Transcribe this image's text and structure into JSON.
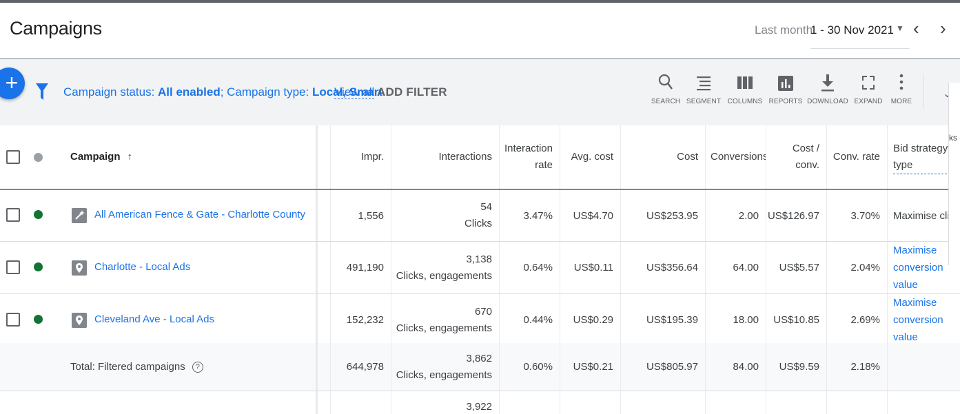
{
  "header": {
    "title": "Campaigns",
    "date_label": "Last month",
    "date_value": "1 - 30 Nov 2021"
  },
  "toolbar": {
    "filter_status_label": "Campaign status: ",
    "filter_status_value": "All enabled",
    "filter_sep": "; ",
    "filter_type_label": "Campaign type: ",
    "filter_type_value": "Local, Smart",
    "view_all": "View all",
    "add_filter": "ADD FILTER",
    "tools": [
      {
        "label": "SEARCH",
        "icon": "search-icon"
      },
      {
        "label": "SEGMENT",
        "icon": "segment-icon"
      },
      {
        "label": "COLUMNS",
        "icon": "columns-icon"
      },
      {
        "label": "REPORTS",
        "icon": "reports-icon"
      },
      {
        "label": "DOWNLOAD",
        "icon": "download-icon"
      },
      {
        "label": "EXPAND",
        "icon": "expand-icon"
      },
      {
        "label": "MORE",
        "icon": "more-icon"
      }
    ]
  },
  "table": {
    "headers": {
      "campaign": "Campaign",
      "impr": "Impr.",
      "interactions": "Interactions",
      "interaction_rate_1": "Interaction",
      "interaction_rate_2": "rate",
      "avg_cost": "Avg. cost",
      "cost": "Cost",
      "conversions": "Conversions",
      "cost_conv_1": "Cost /",
      "cost_conv_2": "conv.",
      "conv_rate": "Conv. rate",
      "bid_strategy_1": "Bid strategy",
      "bid_strategy_2": "type"
    },
    "rows": [
      {
        "name": "All American Fence & Gate - Charlotte County",
        "type_icon": "smart-campaign-icon",
        "impr": "1,556",
        "interactions_count": "54",
        "interactions_type": "Clicks",
        "interaction_rate": "3.47%",
        "avg_cost": "US$4.70",
        "cost": "US$253.95",
        "conversions": "2.00",
        "cost_conv": "US$126.97",
        "conv_rate": "3.70%",
        "bid_strategy": "Maximise clic"
      },
      {
        "name": "Charlotte - Local Ads",
        "type_icon": "location-pin-icon",
        "impr": "491,190",
        "interactions_count": "3,138",
        "interactions_type": "Clicks, engagements",
        "interaction_rate": "0.64%",
        "avg_cost": "US$0.11",
        "cost": "US$356.64",
        "conversions": "64.00",
        "cost_conv": "US$5.57",
        "conv_rate": "2.04%",
        "bid_strategy_lines": [
          "Maximise",
          "conversion",
          "value"
        ]
      },
      {
        "name": "Cleveland Ave - Local Ads",
        "type_icon": "location-pin-icon",
        "impr": "152,232",
        "interactions_count": "670",
        "interactions_type": "Clicks, engagements",
        "interaction_rate": "0.44%",
        "avg_cost": "US$0.29",
        "cost": "US$195.39",
        "conversions": "18.00",
        "cost_conv": "US$10.85",
        "conv_rate": "2.69%",
        "bid_strategy_lines": [
          "Maximise",
          "conversion",
          "value"
        ]
      }
    ],
    "total": {
      "label": "Total: Filtered campaigns",
      "impr": "644,978",
      "interactions_count": "3,862",
      "interactions_type": "Clicks, engagements",
      "interaction_rate": "0.60%",
      "avg_cost": "US$0.21",
      "cost": "US$805.97",
      "conversions": "84.00",
      "cost_conv": "US$9.59",
      "conv_rate": "2.18%"
    },
    "extra_row": {
      "interactions_count": "3,922"
    }
  },
  "edge": {
    "text": "ks"
  },
  "colors": {
    "accent": "#1a73e8",
    "enabled": "#137333"
  }
}
